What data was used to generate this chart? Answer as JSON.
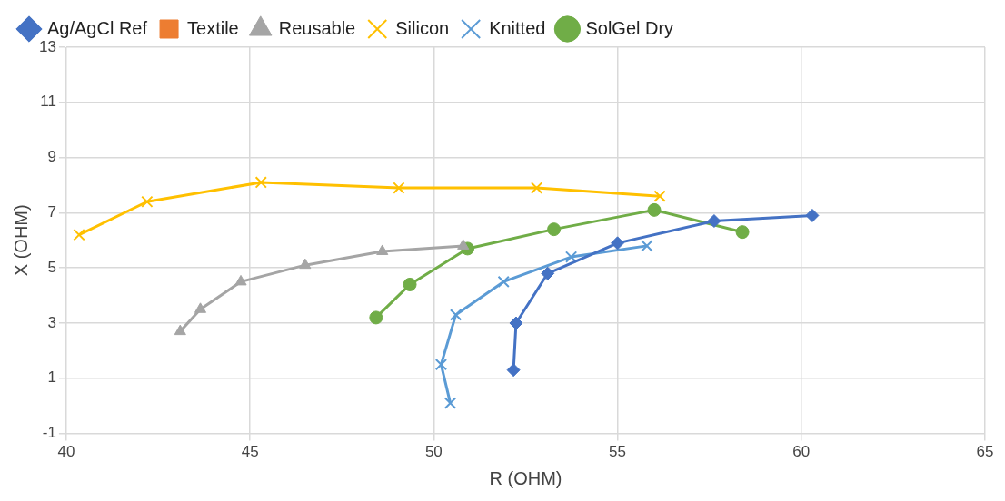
{
  "chart_data": {
    "type": "line",
    "xlabel": "R (OHM)",
    "ylabel": "X (OHM)",
    "xlim": [
      40,
      65
    ],
    "xticks": [
      40,
      45,
      50,
      55,
      60,
      65
    ],
    "ylim": [
      -1,
      13
    ],
    "yticks": [
      -1,
      1,
      3,
      5,
      7,
      9,
      11,
      13
    ],
    "grid": true,
    "legend": "top",
    "line_style": "solid",
    "series": [
      {
        "name": "Ag/AgCl Ref",
        "color": "#4472c4",
        "marker": "diamond",
        "x": [
          52.17,
          52.24,
          53.1,
          55.0,
          57.63,
          60.3
        ],
        "values": [
          1.3,
          3.0,
          4.8,
          5.9,
          6.7,
          6.9
        ]
      },
      {
        "name": "Textile",
        "color": "#ed7d31",
        "marker": "square"
      },
      {
        "name": "Reusable",
        "color": "#a5a5a5",
        "marker": "triangle",
        "x": [
          43.1,
          43.65,
          44.75,
          46.5,
          48.6,
          50.8
        ],
        "values": [
          2.7,
          3.5,
          4.5,
          5.1,
          5.6,
          5.8
        ]
      },
      {
        "name": "Silicon",
        "color": "#ffc000",
        "marker": "cross",
        "x": [
          40.35,
          42.2,
          45.3,
          49.05,
          52.8,
          56.15
        ],
        "values": [
          6.2,
          7.4,
          8.1,
          7.9,
          7.9,
          7.6
        ]
      },
      {
        "name": "Knitted",
        "color": "#5b9bd5",
        "marker": "cross",
        "x": [
          50.45,
          50.2,
          50.6,
          51.9,
          53.74,
          55.8
        ],
        "values": [
          0.1,
          1.5,
          3.3,
          4.5,
          5.4,
          5.8
        ]
      },
      {
        "name": "SolGel Dry",
        "color": "#70ad47",
        "marker": "circle",
        "x": [
          48.43,
          49.35,
          50.92,
          53.27,
          56.0,
          58.4
        ],
        "values": [
          3.2,
          4.4,
          5.7,
          6.4,
          7.1,
          6.3
        ]
      }
    ]
  }
}
